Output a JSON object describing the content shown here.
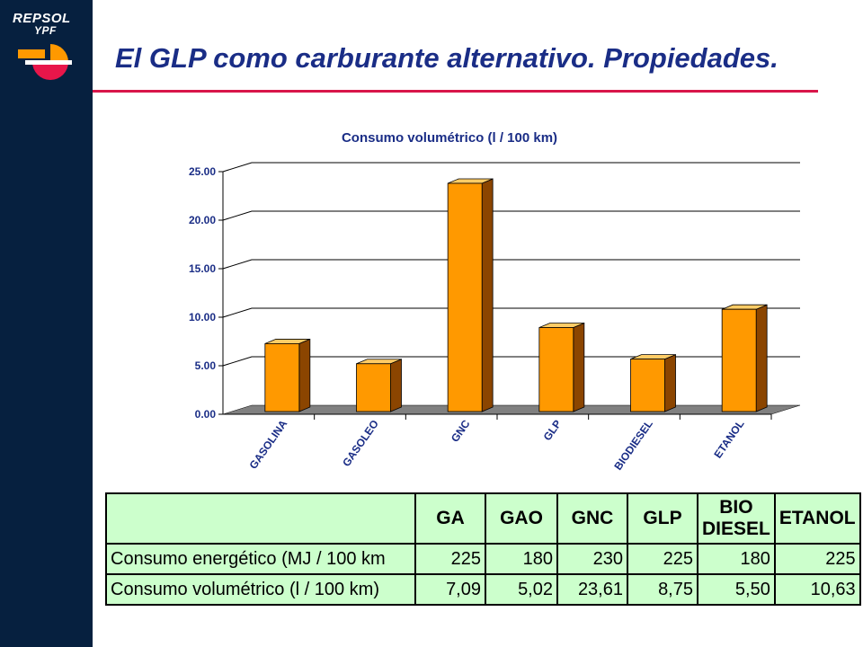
{
  "brand": {
    "line1": "REPSOL",
    "line2": "YPF"
  },
  "colors": {
    "sidebar": "#06203f",
    "title": "#1a2d86",
    "accent": "#d8164a",
    "bar_front": "#ff9900",
    "bar_side": "#8b4500",
    "table_bg": "#ccffcc"
  },
  "slide": {
    "title": "El GLP como carburante alternativo. Propiedades."
  },
  "chart_data": {
    "type": "bar",
    "title": "Consumo volumétrico (l / 100 km)",
    "categories": [
      "GASOLINA",
      "GASOLEO",
      "GNC",
      "GLP",
      "BIODIESEL",
      "ETANOL"
    ],
    "values": [
      7.09,
      5.02,
      23.61,
      8.75,
      5.5,
      10.63
    ],
    "ylim": [
      0,
      25
    ],
    "yticks": [
      "0.00",
      "5.00",
      "10.00",
      "15.00",
      "20.00",
      "25.00"
    ],
    "grid": true,
    "xlabel": "",
    "ylabel": ""
  },
  "table": {
    "headers": [
      "GA",
      "GAO",
      "GNC",
      "GLP",
      "BIO DIESEL",
      "ETANOL"
    ],
    "header_lines": [
      [
        "GA"
      ],
      [
        "GAO"
      ],
      [
        "GNC"
      ],
      [
        "GLP"
      ],
      [
        "BIO",
        "DIESEL"
      ],
      [
        "ETANOL"
      ]
    ],
    "rows": [
      {
        "label": "Consumo energético (MJ / 100 km",
        "values": [
          "225",
          "180",
          "230",
          "225",
          "180",
          "225"
        ]
      },
      {
        "label": "Consumo volumétrico (l / 100 km)",
        "values": [
          "7,09",
          "5,02",
          "23,61",
          "8,75",
          "5,50",
          "10,63"
        ]
      }
    ]
  }
}
